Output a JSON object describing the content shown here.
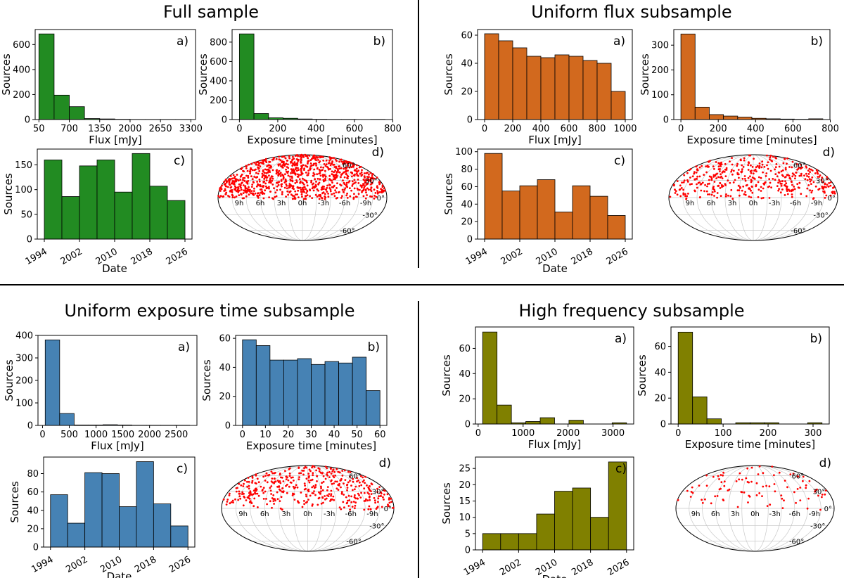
{
  "quadrants": [
    {
      "id": "full",
      "title": "Full sample",
      "color": "#228b22"
    },
    {
      "id": "flux",
      "title": "Uniform flux subsample",
      "color": "#d2691e"
    },
    {
      "id": "exposure",
      "title": "Uniform exposure time subsample",
      "color": "#4682b4"
    },
    {
      "id": "highfreq",
      "title": "High frequency subsample",
      "color": "#808000"
    }
  ],
  "skymap": {
    "point_color": "#ff0000",
    "ra_labels": [
      "9h",
      "6h",
      "3h",
      "0h",
      "-3h",
      "-6h",
      "-9h"
    ],
    "dec_labels": [
      "60°",
      "30°",
      "0°",
      "-30°",
      "-60°"
    ]
  },
  "chart_data": [
    {
      "quadrant": "full",
      "panel": "a)",
      "type": "bar",
      "xlabel": "Flux [mJy]",
      "ylabel": "Sources",
      "bin_edges": [
        50,
        375,
        700,
        1025,
        1350,
        1675,
        2000,
        2325,
        2650,
        2975,
        3300
      ],
      "values": [
        685,
        195,
        103,
        8,
        5,
        2,
        1,
        1,
        1,
        1
      ],
      "xlim": [
        -30,
        3400
      ],
      "ylim": [
        0,
        720
      ],
      "xticks": [
        50,
        700,
        1350,
        2000,
        2650,
        3300
      ],
      "yticks": [
        0,
        200,
        400,
        600
      ]
    },
    {
      "quadrant": "full",
      "panel": "b)",
      "type": "bar",
      "xlabel": "Exposure time [minutes]",
      "ylabel": "Sources",
      "bin_edges": [
        0,
        76,
        152,
        228,
        304,
        380,
        456,
        532,
        608,
        684,
        760
      ],
      "values": [
        885,
        62,
        18,
        13,
        6,
        3,
        2,
        2,
        1,
        2
      ],
      "xlim": [
        -38,
        798
      ],
      "ylim": [
        0,
        930
      ],
      "xticks": [
        0,
        200,
        400,
        600,
        800
      ],
      "yticks": [
        0,
        200,
        400,
        600,
        800
      ]
    },
    {
      "quadrant": "full",
      "panel": "c)",
      "type": "bar",
      "xlabel": "Date",
      "ylabel": "Sources",
      "bin_edges": [
        1994,
        1998,
        2002,
        2006,
        2010,
        2014,
        2018,
        2022,
        2026
      ],
      "values": [
        160,
        86,
        148,
        160,
        95,
        173,
        107,
        78
      ],
      "xlim": [
        1992.4,
        2027.6
      ],
      "ylim": [
        0,
        182
      ],
      "xticks": [
        1994,
        2002,
        2010,
        2018,
        2026
      ],
      "yticks": [
        0,
        50,
        100,
        150
      ],
      "rotate_xticks": true
    },
    {
      "quadrant": "full",
      "panel": "d)",
      "type": "scatter",
      "projection": "mollweide",
      "n_points": 1000,
      "seed": 11,
      "weight": 0.6
    },
    {
      "quadrant": "flux",
      "panel": "a)",
      "type": "bar",
      "xlabel": "Flux [mJy]",
      "ylabel": "Sources",
      "bin_edges": [
        0,
        100,
        200,
        300,
        400,
        500,
        600,
        700,
        800,
        900,
        1000
      ],
      "values": [
        61,
        56,
        51,
        45,
        44,
        46,
        45,
        42,
        40,
        20
      ],
      "xlim": [
        -50,
        1050
      ],
      "ylim": [
        0,
        64
      ],
      "xticks": [
        0,
        200,
        400,
        600,
        800,
        1000
      ],
      "yticks": [
        0,
        20,
        40,
        60
      ]
    },
    {
      "quadrant": "flux",
      "panel": "b)",
      "type": "bar",
      "xlabel": "Exposure time [minutes]",
      "ylabel": "Sources",
      "bin_edges": [
        0,
        76,
        152,
        228,
        304,
        380,
        456,
        532,
        608,
        684,
        760
      ],
      "values": [
        345,
        50,
        20,
        14,
        10,
        5,
        3,
        2,
        1,
        3
      ],
      "xlim": [
        -38,
        798
      ],
      "ylim": [
        0,
        363
      ],
      "xticks": [
        0,
        200,
        400,
        600,
        800
      ],
      "yticks": [
        0,
        100,
        200,
        300
      ]
    },
    {
      "quadrant": "flux",
      "panel": "c)",
      "type": "bar",
      "xlabel": "Date",
      "ylabel": "Sources",
      "bin_edges": [
        1994,
        1998,
        2002,
        2006,
        2010,
        2014,
        2018,
        2022,
        2026
      ],
      "values": [
        98,
        55,
        61,
        68,
        31,
        61,
        49,
        27
      ],
      "xlim": [
        1992.4,
        2027.6
      ],
      "ylim": [
        0,
        103
      ],
      "xticks": [
        1994,
        2002,
        2010,
        2018,
        2026
      ],
      "yticks": [
        0,
        20,
        40,
        60,
        80,
        100
      ],
      "rotate_xticks": true
    },
    {
      "quadrant": "flux",
      "panel": "d)",
      "type": "scatter",
      "projection": "mollweide",
      "n_points": 450,
      "seed": 23,
      "weight": 0.5
    },
    {
      "quadrant": "exposure",
      "panel": "a)",
      "type": "bar",
      "xlabel": "Flux [mJy]",
      "ylabel": "Sources",
      "bin_edges": [
        50,
        320,
        590,
        860,
        1130,
        1400,
        1670,
        1940,
        2210,
        2480,
        2750
      ],
      "values": [
        380,
        53,
        2,
        2,
        3,
        2,
        1,
        1,
        1,
        1
      ],
      "xlim": [
        -85,
        2885
      ],
      "ylim": [
        0,
        400
      ],
      "xticks": [
        0,
        500,
        1000,
        1500,
        2000,
        2500
      ],
      "yticks": [
        0,
        100,
        200,
        300,
        400
      ]
    },
    {
      "quadrant": "exposure",
      "panel": "b)",
      "type": "bar",
      "xlabel": "Exposure time [minutes]",
      "ylabel": "Sources",
      "bin_edges": [
        0,
        6,
        12,
        18,
        24,
        30,
        36,
        42,
        48,
        54,
        60
      ],
      "values": [
        59,
        55,
        45,
        45,
        46,
        42,
        44,
        43,
        47,
        24
      ],
      "xlim": [
        -3,
        63
      ],
      "ylim": [
        0,
        62
      ],
      "xticks": [
        0,
        10,
        20,
        30,
        40,
        50,
        60
      ],
      "yticks": [
        0,
        20,
        40,
        60
      ]
    },
    {
      "quadrant": "exposure",
      "panel": "c)",
      "type": "bar",
      "xlabel": "Date",
      "ylabel": "Sources",
      "bin_edges": [
        1994,
        1998,
        2002,
        2006,
        2010,
        2014,
        2018,
        2022,
        2026
      ],
      "values": [
        57,
        26,
        81,
        80,
        44,
        93,
        47,
        23
      ],
      "xlim": [
        1992.4,
        2027.6
      ],
      "ylim": [
        0,
        98
      ],
      "xticks": [
        1994,
        2002,
        2010,
        2018,
        2026
      ],
      "yticks": [
        0,
        20,
        40,
        60,
        80
      ],
      "rotate_xticks": true
    },
    {
      "quadrant": "exposure",
      "panel": "d)",
      "type": "scatter",
      "projection": "mollweide",
      "n_points": 450,
      "seed": 37,
      "weight": 0.55
    },
    {
      "quadrant": "highfreq",
      "panel": "a)",
      "type": "bar",
      "xlabel": "Flux [mJy]",
      "ylabel": "Sources",
      "bin_edges": [
        100,
        420,
        740,
        1060,
        1380,
        1700,
        2020,
        2340,
        2660,
        2980,
        3300
      ],
      "values": [
        73,
        15,
        1,
        2,
        5,
        0,
        3,
        0,
        0,
        1
      ],
      "xlim": [
        -60,
        3460
      ],
      "ylim": [
        0,
        77
      ],
      "xticks": [
        0,
        1000,
        2000,
        3000
      ],
      "yticks": [
        0,
        20,
        40,
        60
      ]
    },
    {
      "quadrant": "highfreq",
      "panel": "b)",
      "type": "bar",
      "xlabel": "Exposure time [minutes]",
      "ylabel": "Sources",
      "bin_edges": [
        0,
        32,
        64,
        96,
        128,
        160,
        192,
        224,
        256,
        288,
        320
      ],
      "values": [
        71,
        21,
        4,
        0,
        1,
        1,
        1,
        0,
        0,
        1
      ],
      "xlim": [
        -16,
        336
      ],
      "ylim": [
        0,
        75
      ],
      "xticks": [
        0,
        100,
        200,
        300
      ],
      "yticks": [
        0,
        20,
        40,
        60
      ]
    },
    {
      "quadrant": "highfreq",
      "panel": "c)",
      "type": "bar",
      "xlabel": "Date",
      "ylabel": "Sources",
      "bin_edges": [
        1994,
        1998,
        2002,
        2006,
        2010,
        2014,
        2018,
        2022,
        2026
      ],
      "values": [
        5,
        5,
        5,
        11,
        18,
        19,
        10,
        27
      ],
      "xlim": [
        1992.4,
        2027.6
      ],
      "ylim": [
        0,
        28.5
      ],
      "xticks": [
        1994,
        2002,
        2010,
        2018,
        2026
      ],
      "yticks": [
        0,
        5,
        10,
        15,
        20,
        25
      ],
      "rotate_xticks": true
    },
    {
      "quadrant": "highfreq",
      "panel": "d)",
      "type": "scatter",
      "projection": "mollweide",
      "n_points": 100,
      "seed": 53,
      "weight": 0.5
    }
  ]
}
